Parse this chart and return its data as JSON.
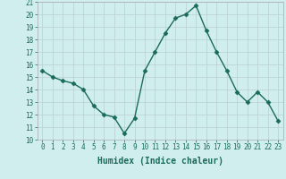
{
  "x": [
    0,
    1,
    2,
    3,
    4,
    5,
    6,
    7,
    8,
    9,
    10,
    11,
    12,
    13,
    14,
    15,
    16,
    17,
    18,
    19,
    20,
    21,
    22,
    23
  ],
  "y": [
    15.5,
    15.0,
    14.7,
    14.5,
    14.0,
    12.7,
    12.0,
    11.8,
    10.5,
    11.7,
    15.5,
    17.0,
    18.5,
    19.7,
    20.0,
    20.7,
    18.7,
    17.0,
    15.5,
    13.8,
    13.0,
    13.8,
    13.0,
    11.5
  ],
  "line_color": "#1a6b5a",
  "marker": "D",
  "marker_size": 2.5,
  "background_color": "#d0eeee",
  "grid_color": "#bbcfcf",
  "xlabel": "Humidex (Indice chaleur)",
  "ylim": [
    10,
    21
  ],
  "xlim": [
    -0.5,
    23.5
  ],
  "yticks": [
    10,
    11,
    12,
    13,
    14,
    15,
    16,
    17,
    18,
    19,
    20,
    21
  ],
  "xticks": [
    0,
    1,
    2,
    3,
    4,
    5,
    6,
    7,
    8,
    9,
    10,
    11,
    12,
    13,
    14,
    15,
    16,
    17,
    18,
    19,
    20,
    21,
    22,
    23
  ],
  "tick_fontsize": 5.5,
  "xlabel_fontsize": 7.0
}
